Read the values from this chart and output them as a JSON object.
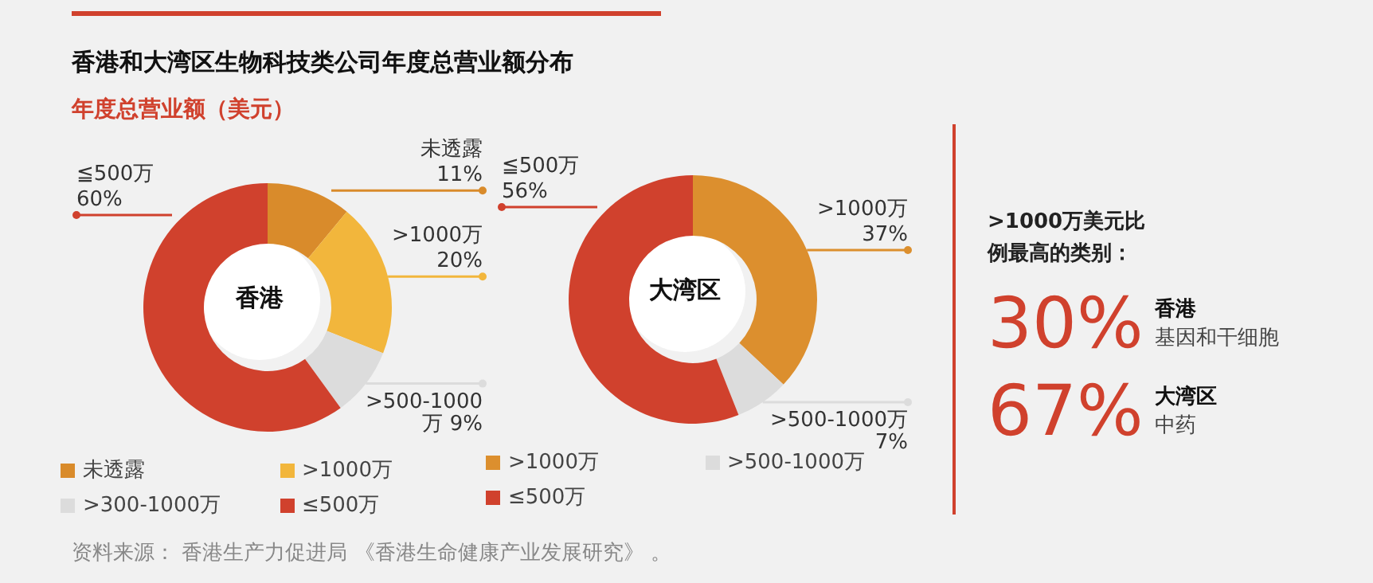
{
  "chart_data": [
    {
      "type": "donut",
      "title": "香港和大湾区生物科技类公司年度总营业额分布",
      "subtitle": "年度总营业额（美元）",
      "categories": [
        "未透露",
        ">1000万",
        ">300-1000万",
        "≤500万"
      ],
      "values": [
        11,
        20,
        9,
        60
      ],
      "colors": [
        "#d98b2b",
        "#f2b63c",
        "#dcdcdc",
        "#d0412d"
      ],
      "value_labels": [
        "未透露\n11%",
        ">1000万\n20%",
        ">500-1000\n万 9%",
        "≦500万\n60%"
      ],
      "legend": "bottom",
      "annotations": [
        "香港",
        "资料来源：  香港生产力促进局 《香港生命健康产业发展研究》 。"
      ]
    },
    {
      "type": "donut",
      "categories": [
        ">1000万",
        ">500-1000万",
        "≤500万"
      ],
      "values": [
        37,
        7,
        56
      ],
      "colors": [
        "#dc8f2e",
        "#dcdcdc",
        "#d0412d"
      ],
      "value_labels": [
        ">1000万\n37%",
        ">500-1000万\n7%",
        "≦500万\n56%"
      ],
      "legend": "bottom",
      "annotations": [
        "大湾区"
      ]
    },
    {
      "type": "other",
      "title": ">1000万美元比例最高的类别：",
      "annotations": [
        "30%",
        "香港",
        "基因和干细胞",
        "67%",
        "大湾区",
        "中药"
      ]
    }
  ]
}
